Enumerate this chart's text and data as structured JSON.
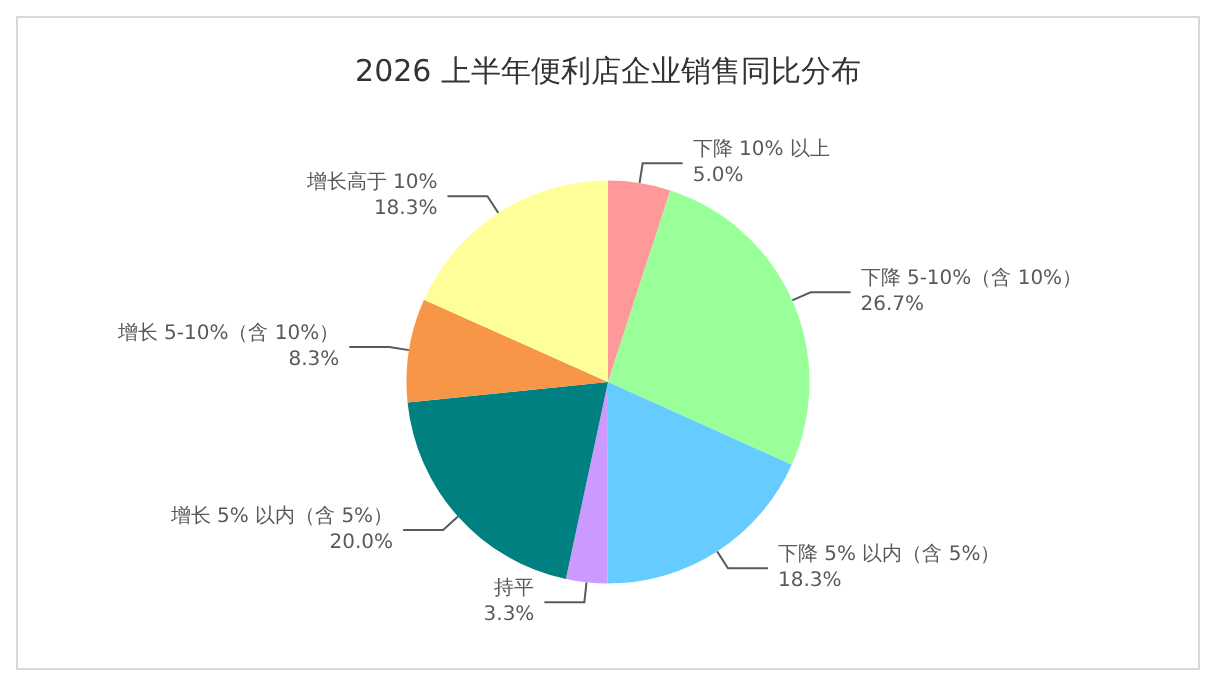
{
  "chart_data": {
    "type": "pie",
    "title": "2026 上半年便利店企业销售同比分布",
    "categories": [
      "下降 10% 以上",
      "下降 5-10%（含 10%）",
      "下降 5% 以内（含 5%）",
      "持平",
      "增长 5% 以内（含 5%）",
      "增长 5-10%（含 10%）",
      "增长高于 10%"
    ],
    "values": [
      5.0,
      26.7,
      18.3,
      3.3,
      20.0,
      8.3,
      18.3
    ],
    "value_labels": [
      "5.0%",
      "26.7%",
      "18.3%",
      "3.3%",
      "20.0%",
      "8.3%",
      "18.3%"
    ],
    "colors": [
      "#ff9999",
      "#99ff99",
      "#66ccff",
      "#cc99ff",
      "#008080",
      "#f79646",
      "#ffff99"
    ],
    "legend": false
  }
}
